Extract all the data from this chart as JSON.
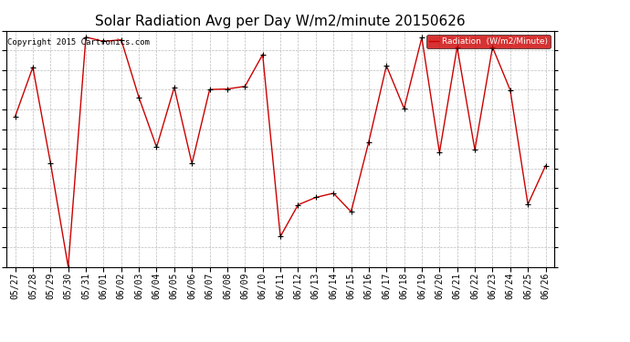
{
  "title": "Solar Radiation Avg per Day W/m2/minute 20150626",
  "copyright_text": "Copyright 2015 Cartronics.com",
  "legend_label": "Radiation  (W/m2/Minute)",
  "dates": [
    "05/27",
    "05/28",
    "05/29",
    "05/30",
    "05/31",
    "06/01",
    "06/02",
    "06/03",
    "06/04",
    "06/05",
    "06/06",
    "06/07",
    "06/08",
    "06/09",
    "06/10",
    "06/11",
    "06/12",
    "06/13",
    "06/14",
    "06/15",
    "06/16",
    "06/17",
    "06/18",
    "06/19",
    "06/20",
    "06/21",
    "06/22",
    "06/23",
    "06/24",
    "06/25",
    "06/26"
  ],
  "values": [
    363.0,
    456.0,
    275.0,
    79.0,
    513.0,
    505.0,
    508.0,
    399.0,
    305.0,
    418.0,
    274.0,
    414.0,
    415.0,
    420.0,
    480.0,
    136.0,
    196.0,
    210.0,
    218.0,
    183.0,
    315.0,
    459.0,
    378.0,
    512.0,
    295.0,
    494.0,
    300.0,
    494.0,
    413.0,
    197.0,
    270.0
  ],
  "yticks": [
    79.0,
    116.2,
    153.3,
    190.5,
    227.7,
    264.8,
    302.0,
    339.2,
    376.3,
    413.5,
    450.7,
    487.8,
    525.0
  ],
  "ymin": 79.0,
  "ymax": 525.0,
  "line_color": "#cc0000",
  "marker": "+",
  "marker_color": "#000000",
  "bg_color": "#ffffff",
  "grid_color": "#bbbbbb",
  "legend_bg": "#cc0000",
  "legend_text_color": "#ffffff",
  "title_fontsize": 11,
  "tick_fontsize": 7,
  "copyright_fontsize": 6.5,
  "fig_width": 6.9,
  "fig_height": 3.75,
  "dpi": 100
}
